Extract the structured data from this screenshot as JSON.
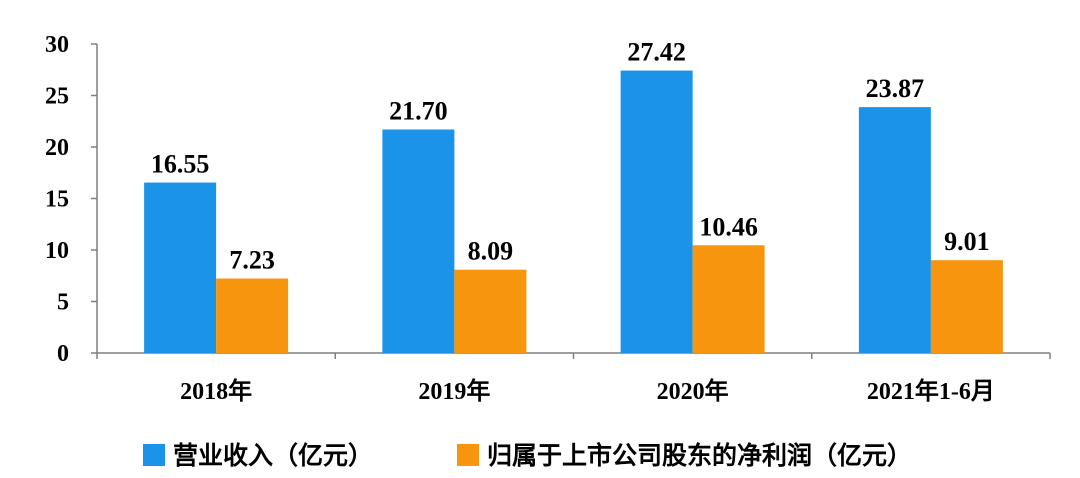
{
  "chart_data": {
    "type": "bar",
    "categories": [
      "2018年",
      "2019年",
      "2020年",
      "2021年1-6月"
    ],
    "series": [
      {
        "name": "营业收入（亿元）",
        "color": "#1A93E8",
        "values": [
          16.55,
          21.7,
          27.42,
          23.87
        ],
        "labels": [
          "16.55",
          "21.70",
          "27.42",
          "23.87"
        ]
      },
      {
        "name": "归属于上市公司股东的净利润（亿元）",
        "color": "#F7950F",
        "values": [
          7.23,
          8.09,
          10.46,
          9.01
        ],
        "labels": [
          "7.23",
          "8.09",
          "10.46",
          "9.01"
        ]
      }
    ],
    "ylim": [
      0,
      30
    ],
    "yticks": [
      "0",
      "5",
      "10",
      "15",
      "20",
      "25",
      "30"
    ],
    "grid": false,
    "legend_position": "bottom"
  }
}
